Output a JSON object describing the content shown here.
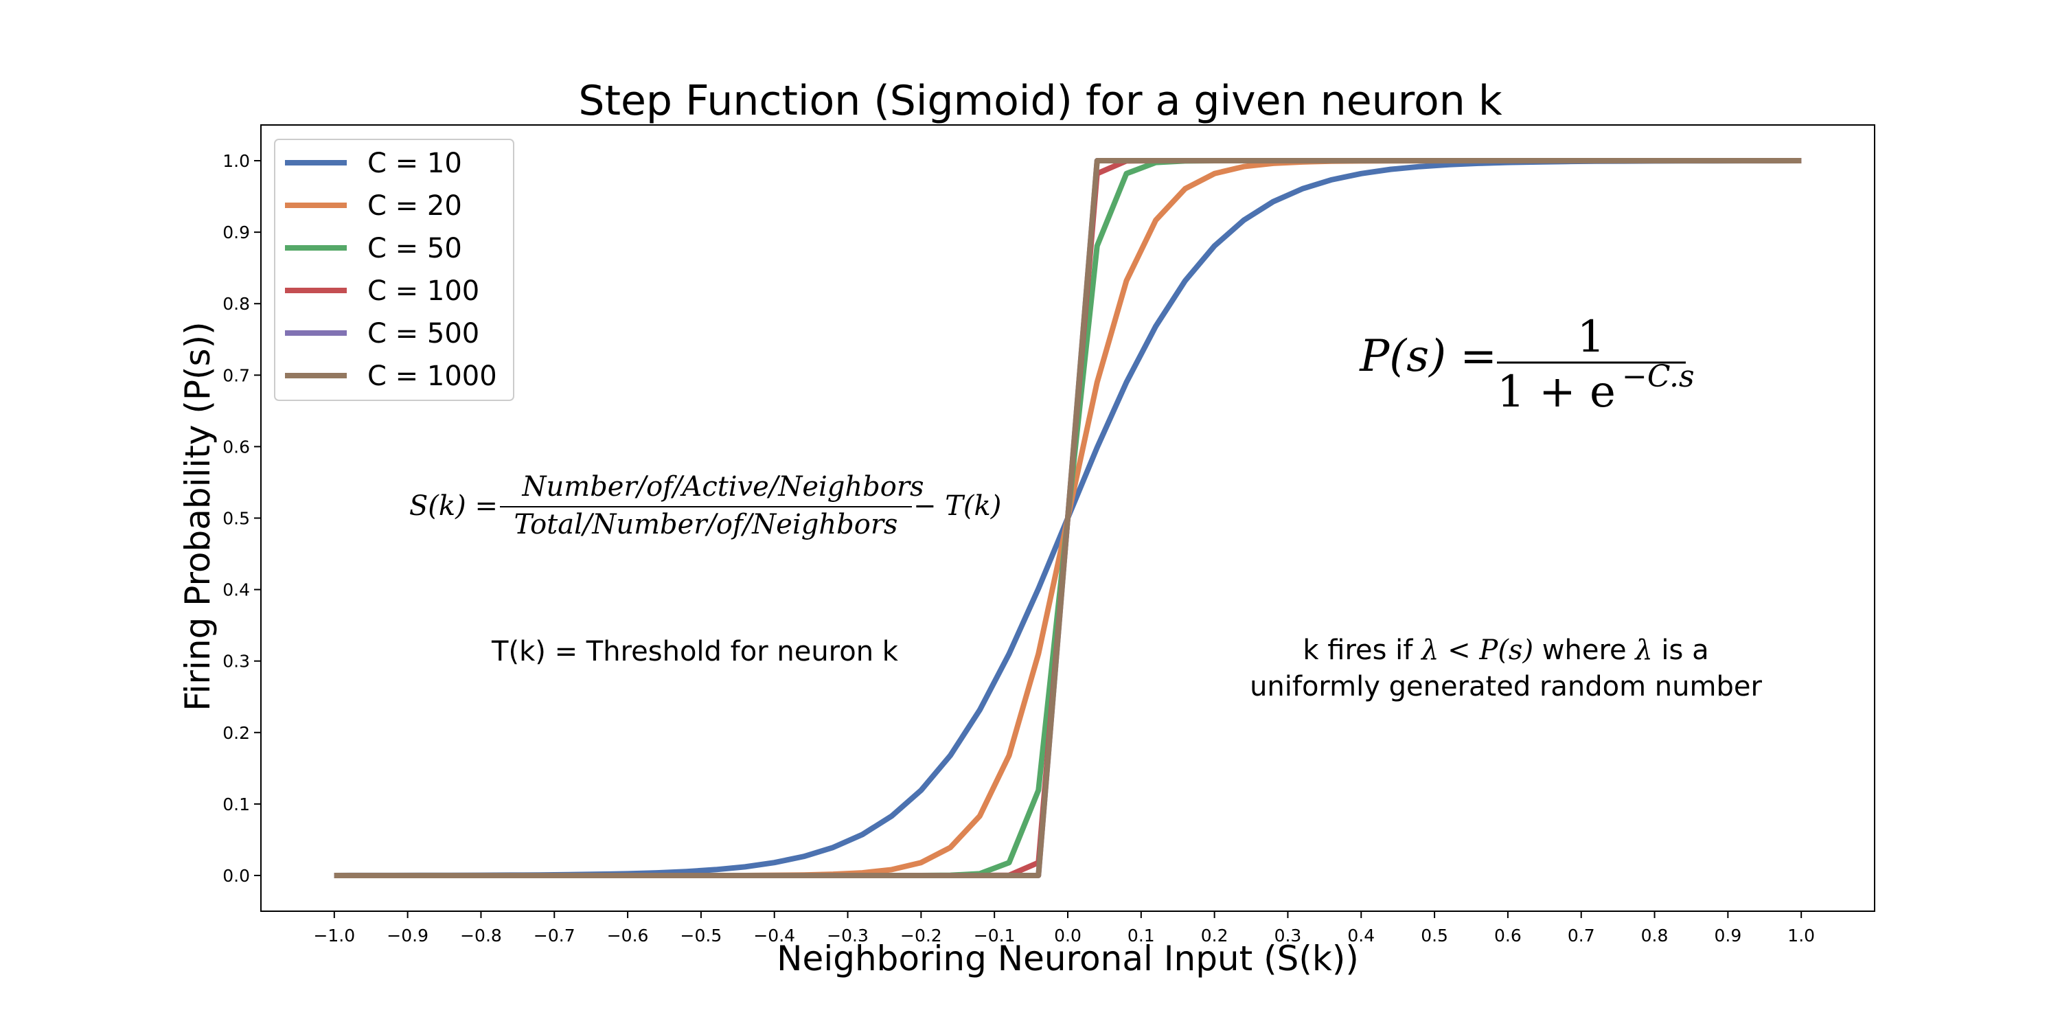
{
  "chart_data": {
    "type": "line",
    "title": "Step Function (Sigmoid) for a given neuron k",
    "xlabel": "Neighboring Neuronal Input (S(k))",
    "ylabel": "Firing Probability (P(s))",
    "xlim": [
      -1.1,
      1.1
    ],
    "ylim": [
      -0.05,
      1.05
    ],
    "xticks": [
      "−1.0",
      "−0.9",
      "−0.8",
      "−0.7",
      "−0.6",
      "−0.5",
      "−0.4",
      "−0.3",
      "−0.2",
      "−0.1",
      "0.0",
      "0.1",
      "0.2",
      "0.3",
      "0.4",
      "0.5",
      "0.6",
      "0.7",
      "0.8",
      "0.9",
      "1.0"
    ],
    "yticks": [
      "0.0",
      "0.1",
      "0.2",
      "0.3",
      "0.4",
      "0.5",
      "0.6",
      "0.7",
      "0.8",
      "0.9",
      "1.0"
    ],
    "grid": false,
    "legend_position": "top-left",
    "x": [
      -1.0,
      -0.96,
      -0.92,
      -0.88,
      -0.84,
      -0.8,
      -0.76,
      -0.72,
      -0.68,
      -0.64,
      -0.6,
      -0.56,
      -0.52,
      -0.48,
      -0.44,
      -0.4,
      -0.36,
      -0.32,
      -0.28,
      -0.24,
      -0.2,
      -0.16,
      -0.12,
      -0.08,
      -0.04,
      0.0,
      0.04,
      0.08,
      0.12,
      0.16,
      0.2,
      0.24,
      0.28,
      0.32,
      0.36,
      0.4,
      0.44,
      0.48,
      0.52,
      0.56,
      0.6,
      0.64,
      0.68,
      0.72,
      0.76,
      0.8,
      0.84,
      0.88,
      0.92,
      0.96,
      1.0
    ],
    "series": [
      {
        "name": "C = 10",
        "color": "#4c72b0",
        "values": [
          0.0,
          0.0001,
          0.0001,
          0.0002,
          0.0002,
          0.0003,
          0.0005,
          0.0007,
          0.0011,
          0.0017,
          0.0025,
          0.0037,
          0.0055,
          0.0082,
          0.0121,
          0.018,
          0.0266,
          0.0392,
          0.0573,
          0.0832,
          0.1192,
          0.168,
          0.2315,
          0.31,
          0.4013,
          0.5,
          0.5987,
          0.69,
          0.7685,
          0.832,
          0.8808,
          0.9168,
          0.9427,
          0.9608,
          0.9734,
          0.982,
          0.9879,
          0.9918,
          0.9945,
          0.9963,
          0.9975,
          0.9983,
          0.9989,
          0.9993,
          0.9995,
          0.9997,
          0.9998,
          0.9998,
          0.9999,
          0.9999,
          1.0
        ]
      },
      {
        "name": "C = 20",
        "color": "#dd8452",
        "values": [
          0,
          0,
          0,
          0,
          0,
          0,
          0,
          0,
          0,
          0,
          0,
          0,
          0,
          0,
          0,
          0.0003,
          0.0007,
          0.0017,
          0.0037,
          0.0082,
          0.018,
          0.0392,
          0.0832,
          0.168,
          0.31,
          0.5,
          0.69,
          0.832,
          0.9168,
          0.9608,
          0.982,
          0.9918,
          0.9963,
          0.9983,
          0.9993,
          0.9997,
          0.9998,
          0.9999,
          1,
          1,
          1,
          1,
          1,
          1,
          1,
          1,
          1,
          1,
          1,
          1,
          1
        ]
      },
      {
        "name": "C = 50",
        "color": "#55a868",
        "values": [
          0,
          0,
          0,
          0,
          0,
          0,
          0,
          0,
          0,
          0,
          0,
          0,
          0,
          0,
          0,
          0,
          0,
          0,
          0,
          0,
          0,
          0.0003,
          0.0025,
          0.018,
          0.1192,
          0.5,
          0.8808,
          0.982,
          0.9975,
          0.9997,
          1,
          1,
          1,
          1,
          1,
          1,
          1,
          1,
          1,
          1,
          1,
          1,
          1,
          1,
          1,
          1,
          1,
          1,
          1,
          1,
          1
        ]
      },
      {
        "name": "C = 100",
        "color": "#c44e52",
        "values": [
          0,
          0,
          0,
          0,
          0,
          0,
          0,
          0,
          0,
          0,
          0,
          0,
          0,
          0,
          0,
          0,
          0,
          0,
          0,
          0,
          0,
          0,
          0,
          0.0003,
          0.018,
          0.5,
          0.982,
          0.9997,
          1,
          1,
          1,
          1,
          1,
          1,
          1,
          1,
          1,
          1,
          1,
          1,
          1,
          1,
          1,
          1,
          1,
          1,
          1,
          1,
          1,
          1,
          1
        ]
      },
      {
        "name": "C = 500",
        "color": "#8172b3",
        "values": [
          0,
          0,
          0,
          0,
          0,
          0,
          0,
          0,
          0,
          0,
          0,
          0,
          0,
          0,
          0,
          0,
          0,
          0,
          0,
          0,
          0,
          0,
          0,
          0,
          0,
          0.5,
          1,
          1,
          1,
          1,
          1,
          1,
          1,
          1,
          1,
          1,
          1,
          1,
          1,
          1,
          1,
          1,
          1,
          1,
          1,
          1,
          1,
          1,
          1,
          1,
          1
        ]
      },
      {
        "name": "C = 1000",
        "color": "#937860",
        "values": [
          0,
          0,
          0,
          0,
          0,
          0,
          0,
          0,
          0,
          0,
          0,
          0,
          0,
          0,
          0,
          0,
          0,
          0,
          0,
          0,
          0,
          0,
          0,
          0,
          0,
          0.5,
          1,
          1,
          1,
          1,
          1,
          1,
          1,
          1,
          1,
          1,
          1,
          1,
          1,
          1,
          1,
          1,
          1,
          1,
          1,
          1,
          1,
          1,
          1,
          1,
          1
        ]
      }
    ],
    "annotations": {
      "sigmoid_formula": {
        "lhs": "P(s) = ",
        "numerator": "1",
        "denominator_base": "1 + e",
        "exponent": "−C.s"
      },
      "input_formula": {
        "lhs": "S(k) = ",
        "numerator": "Number/of/Active/Neighbors",
        "denominator": "Total/Number/of/Neighbors",
        "rhs": " − T(k)"
      },
      "threshold_note": "T(k) = Threshold for neuron k",
      "fires_note": {
        "prefix": "k fires if ",
        "lambda1": "λ",
        "lt": " < ",
        "ps": "P(s)",
        "mid": " where ",
        "lambda2": "λ",
        "suffix": " is a",
        "line2": "uniformly generated random number"
      }
    }
  }
}
